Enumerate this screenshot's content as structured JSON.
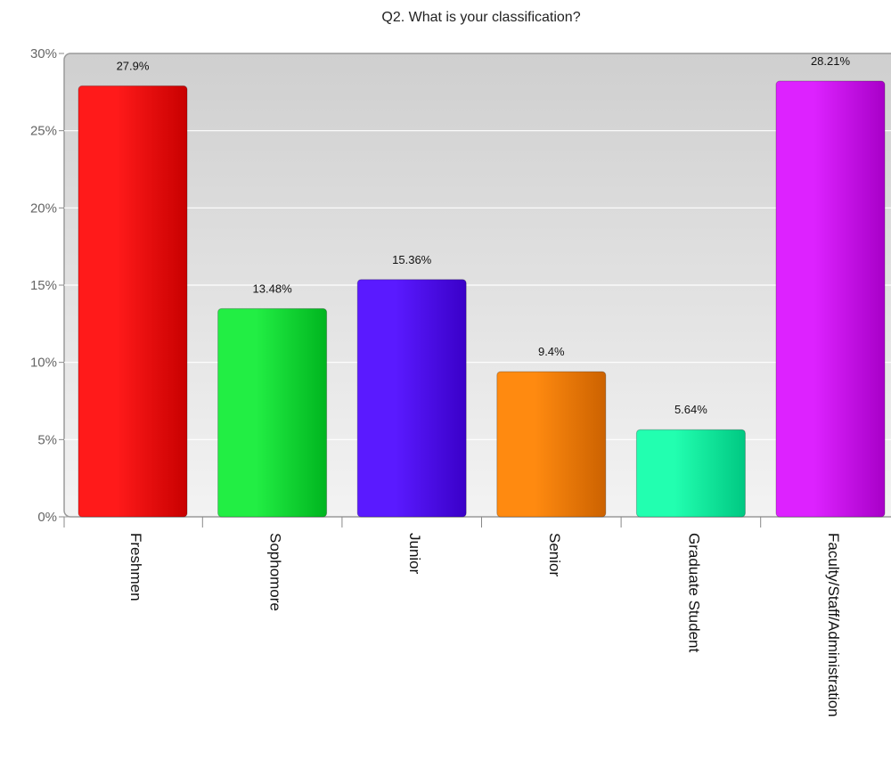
{
  "chart_data": {
    "type": "bar",
    "title": "Q2. What is your classification?",
    "xlabel": "",
    "ylabel": "",
    "ylim": [
      0,
      30
    ],
    "y_ticks": [
      "0%",
      "5%",
      "10%",
      "15%",
      "20%",
      "25%",
      "30%"
    ],
    "y_tick_values": [
      0,
      5,
      10,
      15,
      20,
      25,
      30
    ],
    "grid": true,
    "legend": "none",
    "categories": [
      "Freshmen",
      "Sophomore",
      "Junior",
      "Senior",
      "Graduate Student",
      "Faculty/Staff/Administration"
    ],
    "values": [
      27.9,
      13.48,
      15.36,
      9.4,
      5.64,
      28.21
    ],
    "data_labels": [
      "27.9%",
      "13.48%",
      "15.36%",
      "9.4%",
      "5.64%",
      "28.21%"
    ],
    "colors": [
      [
        "#ff1a1a",
        "#c80000"
      ],
      [
        "#22ee44",
        "#00b51f"
      ],
      [
        "#5a1aff",
        "#3a00c8"
      ],
      [
        "#ff8a10",
        "#cc6200"
      ],
      [
        "#22ffb0",
        "#00c882"
      ],
      [
        "#dd22ff",
        "#a800c8"
      ]
    ]
  }
}
